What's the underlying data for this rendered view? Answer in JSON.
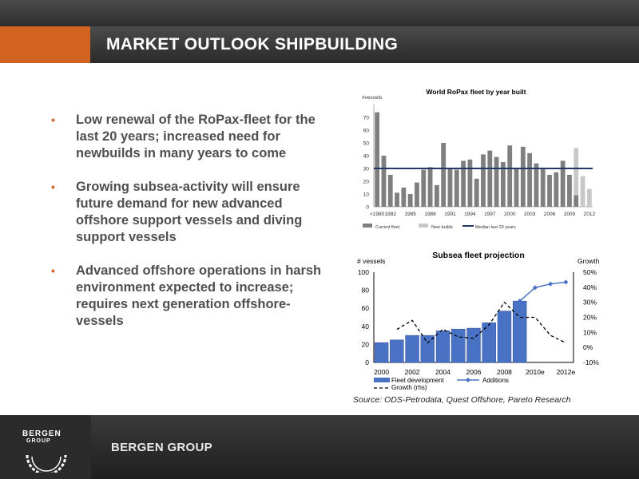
{
  "slide": {
    "title": "MARKET OUTLOOK SHIPBUILDING",
    "bullets": [
      "Low renewal of the RoPax-fleet for the last 20 years; increased need for newbuilds in many years to come",
      "Growing subsea-activity will ensure future demand for new advanced offshore support vessels and diving support vessels",
      "Advanced offshore operations in harsh environment expected to increase; requires next generation offshore-vessels"
    ],
    "bullet_mark": "•",
    "source": "Source: ODS-Petrodata, Quest Offshore, Pareto Research",
    "footer_brand": "BERGEN GROUP",
    "logo_line1": "BERGEN",
    "logo_line2": "GROUP",
    "colors": {
      "accent": "#d2621f",
      "bar_dark": "#7f7f7f",
      "bar_light": "#c8c8c8",
      "median_line": "#1f3864",
      "subsea_bar": "#4a72c4",
      "additions_line": "#4a72c4"
    }
  },
  "chart_data": [
    {
      "type": "bar",
      "title": "World RoPax fleet by year built",
      "ylabel": "#vessels",
      "ylim": [
        0,
        80
      ],
      "yticks": [
        0,
        10,
        20,
        30,
        40,
        50,
        60,
        70
      ],
      "categories": [
        "<1980",
        "1981",
        "1982",
        "1983",
        "1984",
        "1985",
        "1986",
        "1987",
        "1988",
        "1989",
        "1990",
        "1991",
        "1992",
        "1993",
        "1994",
        "1995",
        "1996",
        "1997",
        "1998",
        "1999",
        "2000",
        "2001",
        "2002",
        "2003",
        "2004",
        "2005",
        "2006",
        "2007",
        "2008",
        "2009",
        "2010",
        "2011",
        "2012"
      ],
      "x_tick_labels": [
        "<1980",
        "1982",
        "1985",
        "1988",
        "1991",
        "1994",
        "1997",
        "2000",
        "2003",
        "2006",
        "2009",
        "2012"
      ],
      "series": [
        {
          "name": "Current fleet",
          "values": [
            74,
            40,
            25,
            11,
            15,
            10,
            19,
            29,
            31,
            17,
            50,
            30,
            29,
            36,
            37,
            22,
            41,
            44,
            39,
            35,
            48,
            30,
            47,
            42,
            34,
            30,
            25,
            27,
            36,
            25,
            9,
            0,
            0
          ]
        },
        {
          "name": "New builds",
          "values": [
            0,
            0,
            0,
            0,
            0,
            0,
            0,
            0,
            0,
            0,
            0,
            0,
            0,
            0,
            0,
            0,
            0,
            0,
            0,
            0,
            0,
            0,
            0,
            0,
            0,
            0,
            0,
            0,
            0,
            0,
            37,
            24,
            14
          ]
        }
      ],
      "median_line": {
        "name": "Median last 20 years",
        "value": 30
      },
      "legend": [
        "Current fleet",
        "New builds",
        "Median last 20 years"
      ],
      "legend_position": "bottom"
    },
    {
      "type": "bar",
      "title": "Subsea fleet projection",
      "ylabel": "# vessels",
      "y2label": "Growth",
      "ylim": [
        0,
        100
      ],
      "yticks": [
        0,
        20,
        40,
        60,
        80,
        100
      ],
      "y2lim": [
        -10,
        50
      ],
      "y2ticks": [
        "-10%",
        "0%",
        "10%",
        "20%",
        "30%",
        "40%",
        "50%"
      ],
      "y2tick_values": [
        -10,
        0,
        10,
        20,
        30,
        40,
        50
      ],
      "categories": [
        "2000",
        "2001",
        "2002",
        "2003",
        "2004",
        "2005",
        "2006",
        "2007",
        "2008",
        "2009",
        "2010e",
        "2011e",
        "2012e"
      ],
      "x_tick_labels": [
        "2000",
        "2002",
        "2004",
        "2006",
        "2008",
        "2010e",
        "2012e"
      ],
      "fleet_development": {
        "name": "Fleet development",
        "values": [
          22,
          25,
          30,
          30,
          35,
          37,
          38,
          44,
          57,
          68,
          null,
          null,
          null
        ]
      },
      "additions": {
        "name": "Additions",
        "values": [
          null,
          null,
          null,
          null,
          null,
          null,
          null,
          null,
          null,
          68,
          83,
          87,
          89
        ]
      },
      "growth": {
        "name": "Growth (rhs)",
        "values": [
          null,
          12,
          18,
          3,
          12,
          7,
          6,
          15,
          30,
          20,
          20,
          8,
          3
        ]
      },
      "legend": [
        "Fleet development",
        "Additions",
        "Growth (rhs)"
      ],
      "legend_position": "bottom"
    }
  ]
}
